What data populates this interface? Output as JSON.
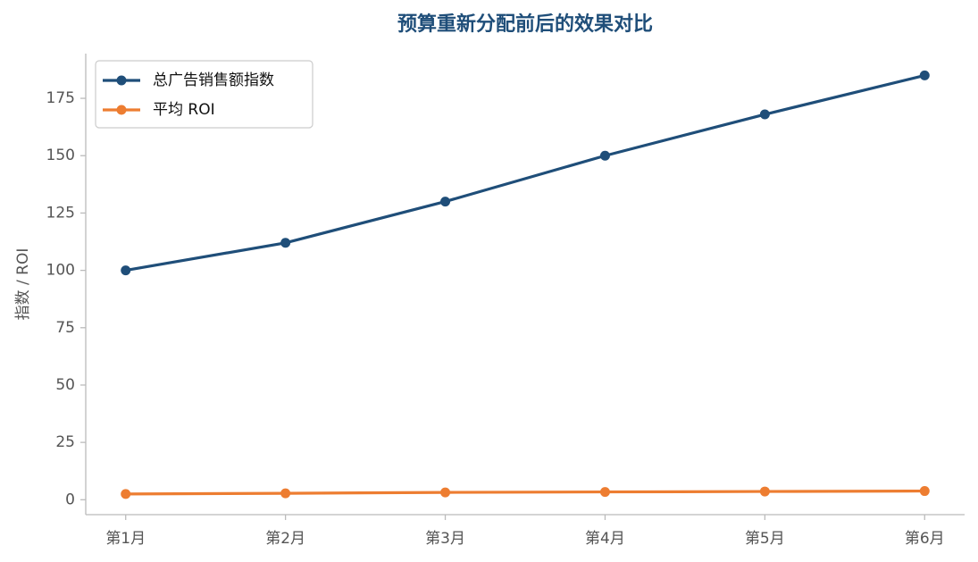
{
  "chart_data": {
    "type": "line",
    "title": "预算重新分配前后的效果对比",
    "y_label": "指数 / ROI",
    "categories": [
      "第1月",
      "第2月",
      "第3月",
      "第4月",
      "第5月",
      "第6月"
    ],
    "series": [
      {
        "name": "总广告销售额指数",
        "color": "#1f4e79",
        "values": [
          100,
          112,
          130,
          150,
          168,
          185
        ]
      },
      {
        "name": "平均 ROI",
        "color": "#ed7d31",
        "values": [
          2.5,
          2.8,
          3.2,
          3.4,
          3.6,
          3.8
        ]
      }
    ],
    "ylim": [
      -6.5,
      194.5
    ],
    "yticks": [
      0,
      25,
      50,
      75,
      100,
      125,
      150,
      175
    ],
    "grid": false,
    "legend": "upper left"
  }
}
